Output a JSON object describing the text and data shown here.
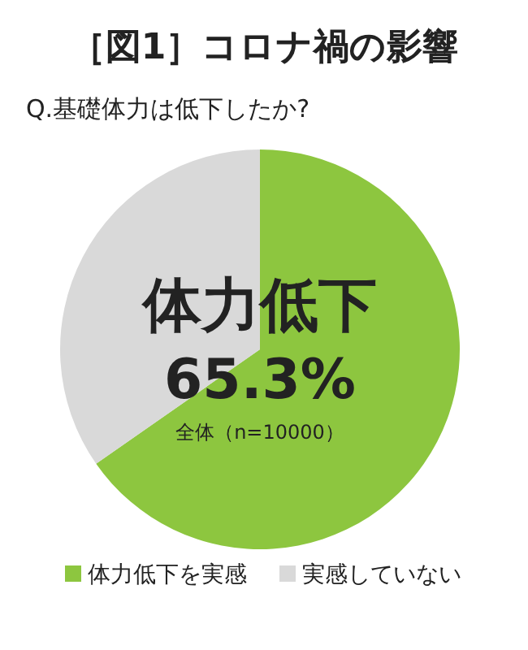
{
  "chart_data": {
    "type": "pie",
    "title": "［図1］コロナ禍の影響",
    "subtitle": "Q.基礎体力は低下したか?",
    "categories": [
      "体力低下を実感",
      "実感していない"
    ],
    "values": [
      65.3,
      34.7
    ],
    "colors": [
      "#8dc63f",
      "#d9d9d9"
    ],
    "annotations": [
      "体力低下",
      "65.3%",
      "全体（n=10000）"
    ],
    "legend": "bottom"
  }
}
